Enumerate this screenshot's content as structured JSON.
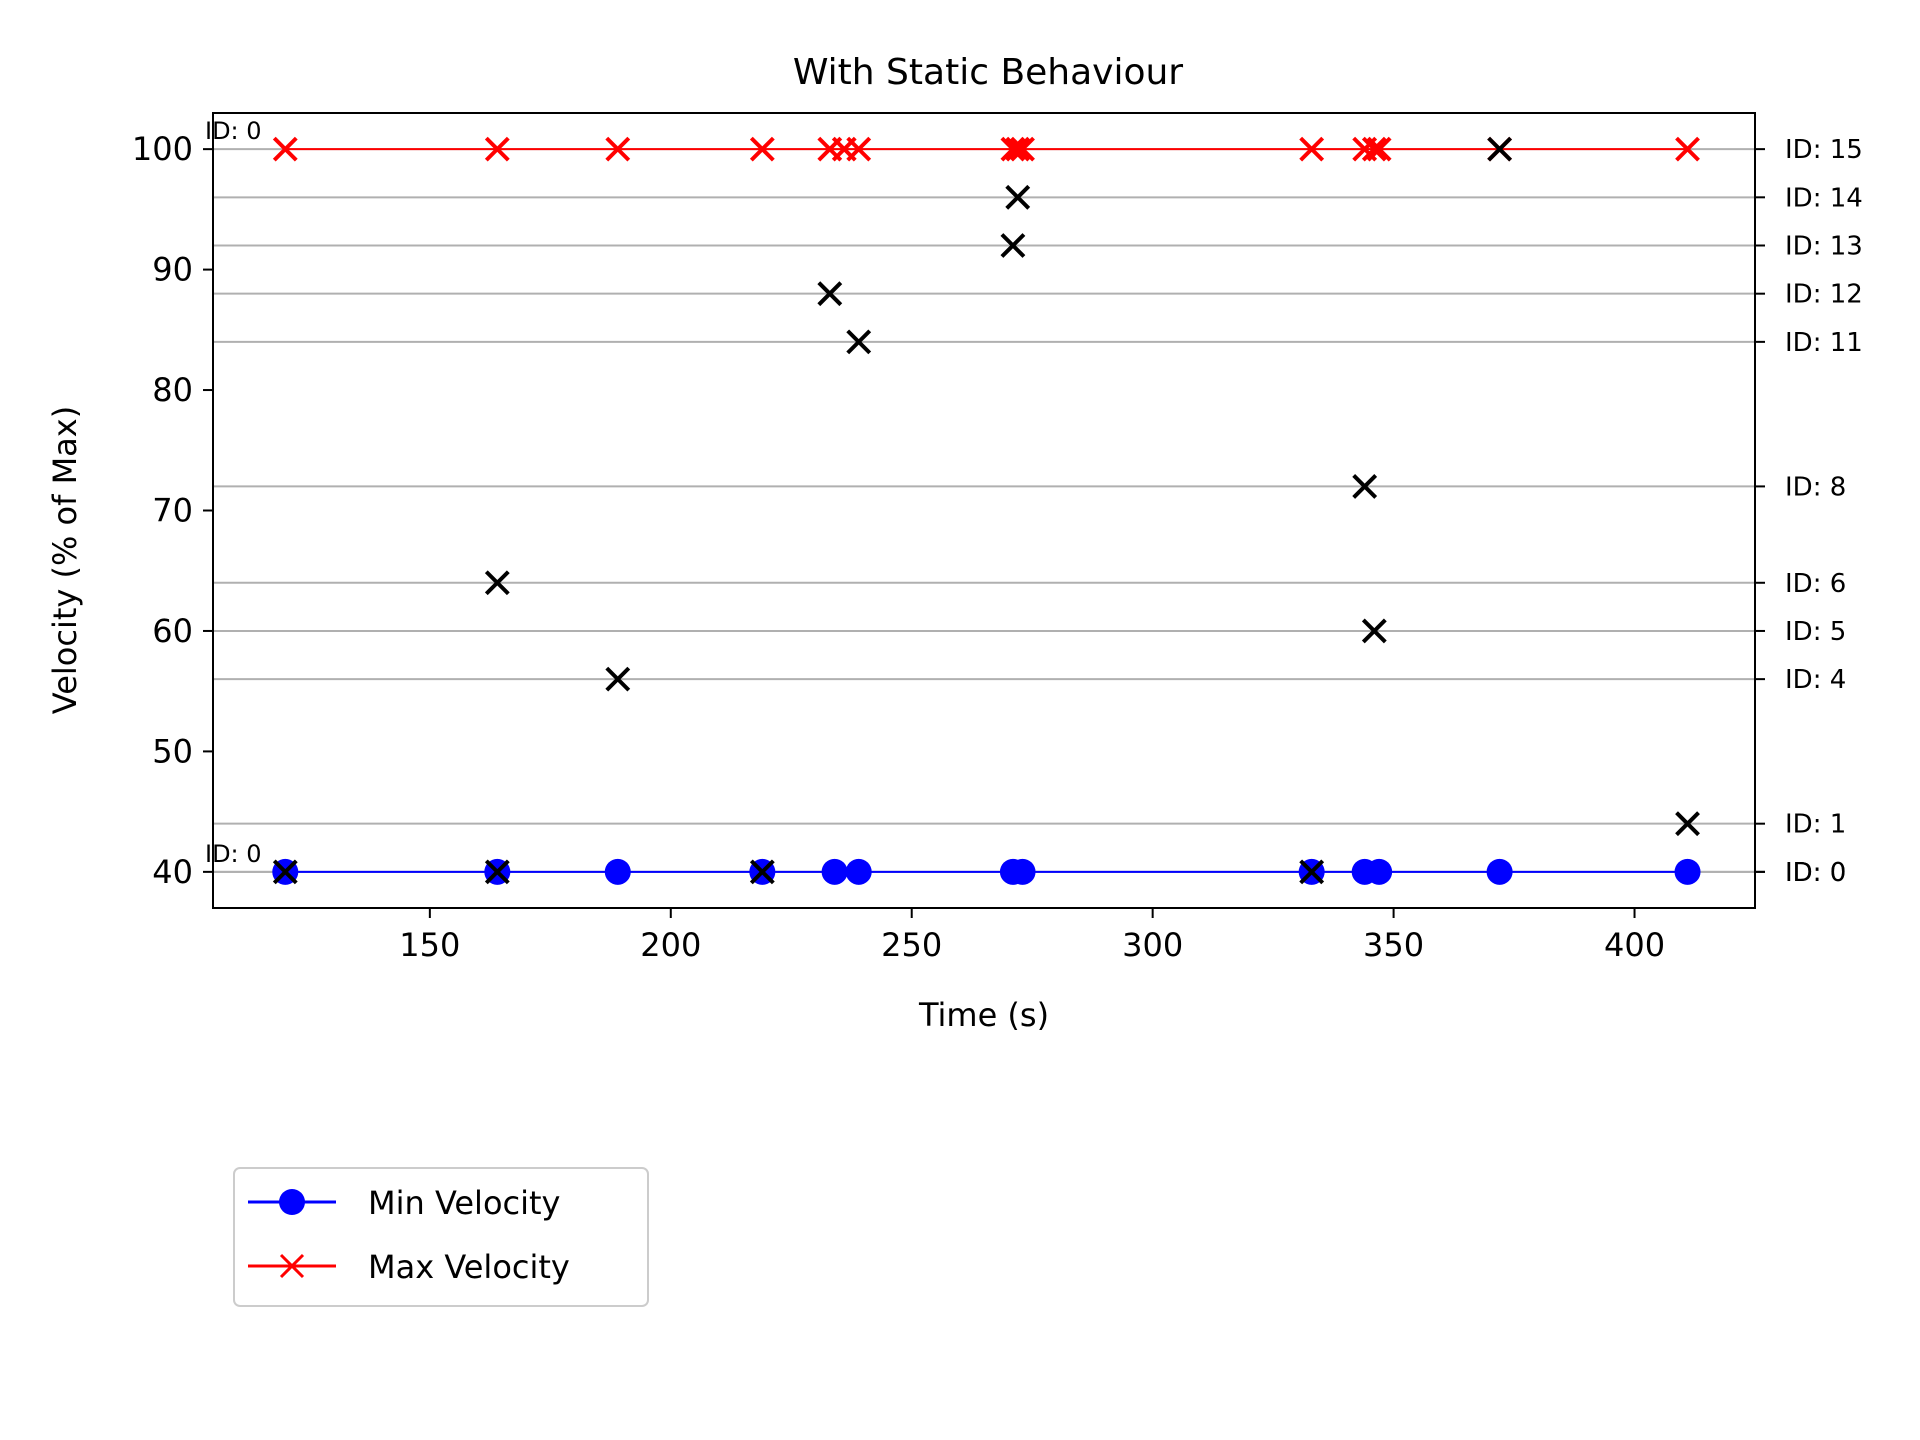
{
  "chart_data": {
    "type": "scatter",
    "title": "With Static Behaviour",
    "xlabel": "Time (s)",
    "ylabel": "Velocity (% of Max)",
    "xlim": [
      105,
      425
    ],
    "ylim": [
      37,
      103
    ],
    "xticks": [
      150,
      200,
      250,
      300,
      350,
      400
    ],
    "yticks": [
      40,
      50,
      60,
      70,
      80,
      90,
      100
    ],
    "legend_position": "below-left",
    "colors": {
      "min": "#0000ff",
      "max": "#ff0000",
      "marker": "#000000",
      "grid": "#b0b0b0"
    },
    "series": [
      {
        "name": "Min Velocity",
        "marker": "circle",
        "color": "#0000ff",
        "x": [
          120,
          164,
          189,
          219,
          234,
          239,
          271,
          273,
          333,
          344,
          347,
          372,
          411
        ],
        "y": [
          40,
          40,
          40,
          40,
          40,
          40,
          40,
          40,
          40,
          40,
          40,
          40,
          40
        ]
      },
      {
        "name": "Max Velocity",
        "marker": "x",
        "color": "#ff0000",
        "x": [
          120,
          164,
          189,
          219,
          233,
          236,
          239,
          271,
          272,
          273,
          333,
          344,
          346,
          347,
          372,
          411
        ],
        "y": [
          100,
          100,
          100,
          100,
          100,
          100,
          100,
          100,
          100,
          100,
          100,
          100,
          100,
          100,
          100,
          100
        ]
      }
    ],
    "id_markers": {
      "x": [
        120,
        164,
        164,
        189,
        219,
        233,
        239,
        271,
        272,
        333,
        344,
        346,
        372,
        411
      ],
      "y": [
        40,
        40,
        64,
        56,
        40,
        88,
        84,
        92,
        96,
        40,
        72,
        60,
        100,
        44
      ]
    },
    "id_lines": {
      "values": [
        100,
        96,
        92,
        88,
        84,
        72,
        64,
        60,
        56,
        44,
        40,
        40
      ],
      "labels": [
        "ID: 15",
        "ID: 14",
        "ID: 13",
        "ID: 12",
        "ID: 11",
        "ID: 8",
        "ID: 6",
        "ID: 5",
        "ID: 4",
        "ID: 1",
        "ID: 0",
        "ID: 0"
      ]
    },
    "corner_labels": [
      {
        "text": "ID: 0",
        "y": 100
      },
      {
        "text": "ID: 0",
        "y": 40
      }
    ]
  }
}
